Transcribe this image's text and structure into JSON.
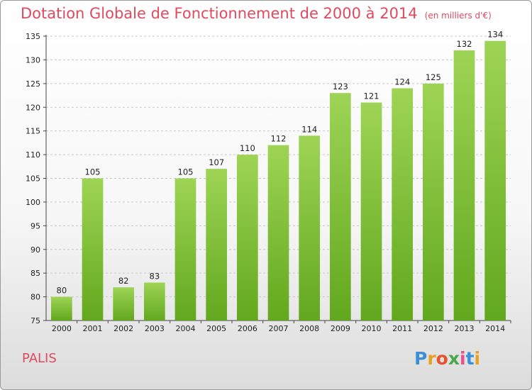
{
  "title": "Dotation Globale de Fonctionnement de 2000 à 2014",
  "subtitle": "(en milliers d'€)",
  "commune": "PALIS",
  "logo": {
    "letters": [
      "P",
      "r",
      "o",
      "x",
      "i",
      "t",
      "i"
    ],
    "colors": [
      "#3a8fd6",
      "#e8a020",
      "#e8532f",
      "#4aa84a",
      "#e94f8a",
      "#3a8fd6",
      "#e8a020"
    ]
  },
  "colors": {
    "bar_top": "#9ed455",
    "bar_bottom": "#62a81e",
    "title": "#de4a5e",
    "grid": "#c8c8c8"
  },
  "chart_data": {
    "type": "bar",
    "title": "Dotation Globale de Fonctionnement de 2000 à 2014",
    "subtitle": "(en milliers d'€)",
    "xlabel": "",
    "ylabel": "",
    "categories": [
      "2000",
      "2001",
      "2002",
      "2003",
      "2004",
      "2005",
      "2006",
      "2007",
      "2008",
      "2009",
      "2010",
      "2011",
      "2012",
      "2013",
      "2014"
    ],
    "values": [
      80,
      105,
      82,
      83,
      105,
      107,
      110,
      112,
      114,
      123,
      121,
      124,
      125,
      132,
      134
    ],
    "ylim": [
      75,
      135
    ],
    "yticks": [
      75,
      80,
      85,
      90,
      95,
      100,
      105,
      110,
      115,
      120,
      125,
      130,
      135
    ],
    "grid": true,
    "legend": "none"
  }
}
